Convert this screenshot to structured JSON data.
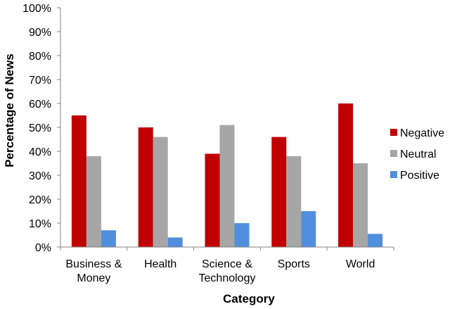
{
  "chart_data": {
    "type": "bar",
    "title": "",
    "xlabel": "Category",
    "ylabel": "Percentage of News",
    "ylim": [
      0,
      100
    ],
    "y_tick_step": 10,
    "y_tick_format": "percent",
    "y_ticks": [
      "0%",
      "10%",
      "20%",
      "30%",
      "40%",
      "50%",
      "60%",
      "70%",
      "80%",
      "90%",
      "100%"
    ],
    "grid": false,
    "legend": "right",
    "categories": [
      [
        "Business &",
        "Money"
      ],
      [
        "Health"
      ],
      [
        "Science &",
        "Technology"
      ],
      [
        "Sports"
      ],
      [
        "World"
      ]
    ],
    "series": [
      {
        "name": "Negative",
        "color": "#c00000",
        "values": [
          55,
          50,
          39,
          46,
          60
        ]
      },
      {
        "name": "Neutral",
        "color": "#a6a6a6",
        "values": [
          38,
          46,
          51,
          38,
          35
        ]
      },
      {
        "name": "Positive",
        "color": "#4f8fde",
        "values": [
          7,
          4,
          10,
          15,
          5.5
        ]
      }
    ]
  }
}
